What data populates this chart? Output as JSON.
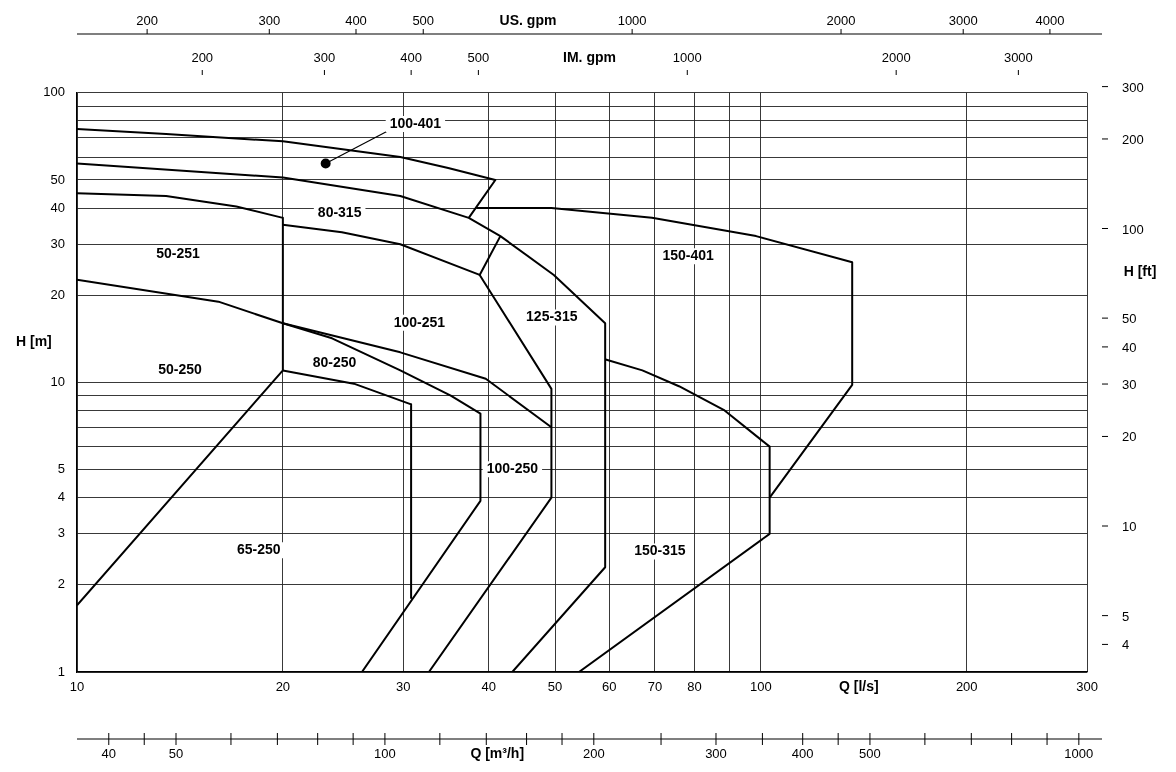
{
  "chart_data": [
    {
      "type": "other",
      "title": "US. gpm",
      "annotations": [
        "200",
        "300",
        "400",
        "500",
        "1000",
        "2000",
        "3000",
        "4000"
      ]
    },
    {
      "type": "other",
      "title": "IM. gpm",
      "annotations": [
        "200",
        "300",
        "400",
        "500",
        "1000",
        "2000",
        "3000"
      ]
    },
    {
      "type": "line",
      "xlabel": "Q [l/s]",
      "ylabel": "H [m]",
      "log": "xy",
      "grid": true,
      "marker": "none",
      "line_style": "solid",
      "xlim": [
        10,
        300
      ],
      "xticks": [
        10,
        20,
        30,
        40,
        50,
        60,
        70,
        80,
        {
          "value": 90,
          "label": null
        },
        100,
        200,
        300
      ],
      "ylim": [
        1,
        100
      ],
      "yticks": [
        1,
        2,
        3,
        4,
        5,
        {
          "value": 6,
          "label": null
        },
        {
          "value": 7,
          "label": null
        },
        {
          "value": 8,
          "label": null
        },
        {
          "value": 9,
          "label": null
        },
        10,
        20,
        30,
        40,
        50,
        {
          "value": 60,
          "label": null
        },
        {
          "value": 70,
          "label": null
        },
        {
          "value": 80,
          "label": null
        },
        {
          "value": 90,
          "label": null
        },
        100
      ],
      "series": [
        {
          "color": "#000000",
          "x": [
            10,
            13.5,
            20,
            29.7,
            34.9,
            40.9,
            37.4
          ],
          "values": [
            75,
            72,
            68,
            60,
            55,
            50,
            37
          ]
        },
        {
          "color": "#000000",
          "x": [
            10,
            20,
            29.7,
            37.4,
            41.6,
            49.8,
            59.2,
            59.2,
            43.3
          ],
          "values": [
            57,
            51,
            44,
            37,
            32,
            23.5,
            16,
            2.3,
            1
          ]
        },
        {
          "color": "#000000",
          "x": [
            41.6,
            38.8,
            49.4,
            49.4,
            32.7
          ],
          "values": [
            32,
            23.5,
            9.5,
            4.0,
            1
          ]
        },
        {
          "color": "#000000",
          "x": [
            38.4,
            49.4,
            69.3,
            98.4,
            136,
            136,
            103
          ],
          "values": [
            40,
            40,
            37,
            32,
            26,
            9.8,
            4.0
          ]
        },
        {
          "color": "#000000",
          "x": [
            59.3,
            67.1,
            75.9,
            88.5,
            103,
            103,
            54.2
          ],
          "values": [
            12,
            11,
            9.7,
            8.0,
            6.0,
            3.0,
            1
          ]
        },
        {
          "color": "#000000",
          "x": [
            10,
            13.5,
            17.1,
            20,
            20,
            10
          ],
          "values": [
            45,
            44,
            40.5,
            37,
            11,
            1.7
          ]
        },
        {
          "color": "#000000",
          "x": [
            20,
            24.4,
            29.7,
            38.8
          ],
          "values": [
            35,
            33,
            30,
            23.5
          ]
        },
        {
          "color": "#000000",
          "x": [
            10,
            16.1,
            20,
            29.7,
            39.6,
            49.4
          ],
          "values": [
            22.6,
            19,
            16,
            12.7,
            10.3,
            7.0
          ]
        },
        {
          "color": "#000000",
          "x": [
            20,
            23.6,
            29.7,
            35.2,
            38.9,
            38.9,
            26.1
          ],
          "values": [
            16,
            14.2,
            11,
            9.0,
            7.8,
            3.9,
            1
          ]
        },
        {
          "color": "#000000",
          "x": [
            20,
            25.4,
            30.8,
            30.8
          ],
          "values": [
            11,
            9.9,
            8.4,
            1.8
          ]
        },
        {
          "color": "#000000",
          "marker": "circle",
          "x": [
            23.1
          ],
          "values": [
            57
          ]
        }
      ],
      "annotations": [
        {
          "text": "100-401",
          "x": 23.1,
          "y": 57
        },
        "80-315",
        "50-251",
        "150-401",
        "125-315",
        "100-251",
        "50-250",
        "80-250",
        "100-250",
        "65-250",
        "150-315"
      ]
    },
    {
      "type": "other",
      "title": "H [ft]",
      "annotations": [
        "4",
        "5",
        "10",
        "20",
        "30",
        "40",
        "50",
        "100",
        "200",
        "300"
      ]
    },
    {
      "type": "other",
      "title": "Q [m³/h]",
      "annotations": [
        "40",
        "50",
        "100",
        "200",
        "300",
        "400",
        "500",
        "1000"
      ]
    }
  ]
}
